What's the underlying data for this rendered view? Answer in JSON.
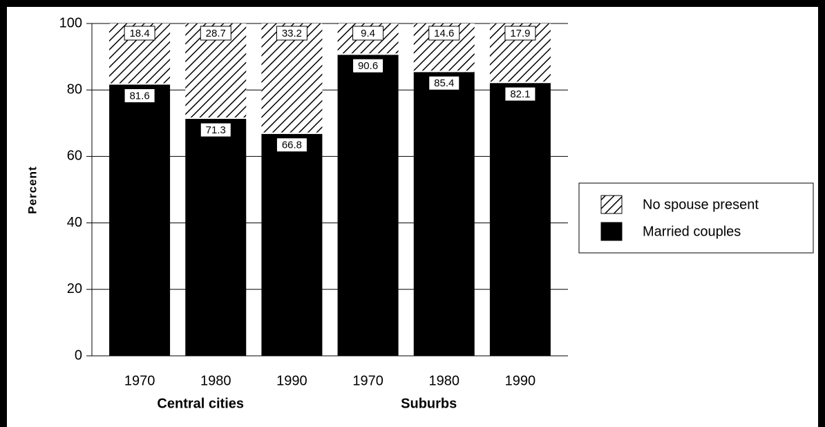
{
  "chart_data": {
    "type": "stacked_bar",
    "y_label": "Percent",
    "categories": [
      "1970",
      "1980",
      "1990",
      "1970",
      "1980",
      "1990"
    ],
    "group_labels": [
      "Central cities",
      "Suburbs"
    ],
    "series": [
      {
        "name": "Married couples",
        "color": "#000000",
        "values": [
          81.6,
          71.3,
          66.8,
          90.6,
          85.4,
          82.1
        ]
      },
      {
        "name": "No spouse present",
        "color": "#000000",
        "pattern": "hatch",
        "values": [
          18.4,
          28.7,
          33.2,
          9.4,
          14.6,
          17.9
        ]
      }
    ],
    "ylim": [
      0,
      100
    ],
    "yticks": [
      0,
      20,
      40,
      60,
      80,
      100
    ],
    "grid": true,
    "legend": "right"
  }
}
